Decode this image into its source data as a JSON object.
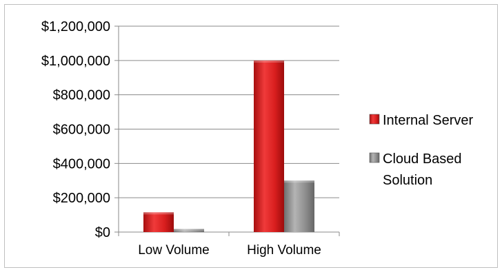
{
  "chart_data": {
    "type": "bar",
    "categories": [
      "Low Volume",
      "High Volume"
    ],
    "series": [
      {
        "name": "Internal Server",
        "values": [
          115000,
          1000000
        ],
        "color": "#d81e1e"
      },
      {
        "name": "Cloud Based Solution",
        "values": [
          18000,
          300000
        ],
        "color": "#8c8c8c"
      }
    ],
    "legend_lines": [
      [
        "Internal Server"
      ],
      [
        "Cloud Based",
        "Solution"
      ]
    ],
    "yticks": [
      "$0",
      "$200,000",
      "$400,000",
      "$600,000",
      "$800,000",
      "$1,000,000",
      "$1,200,000"
    ],
    "ylim": [
      0,
      1200000
    ],
    "ystep": 200000,
    "grid": true,
    "legend_position": "right",
    "title": "",
    "xlabel": "",
    "ylabel": ""
  }
}
